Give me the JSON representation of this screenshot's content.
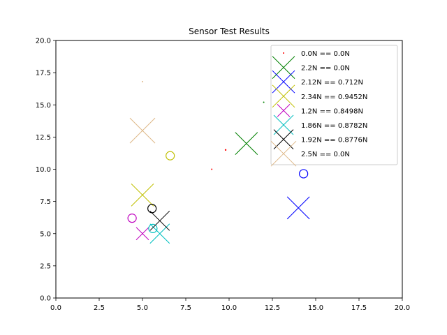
{
  "chart_data": {
    "type": "scatter",
    "title": "Sensor Test Results",
    "xlabel": "",
    "ylabel": "",
    "xlim": [
      0,
      20
    ],
    "ylim": [
      0,
      20
    ],
    "xticks": [
      0,
      2.5,
      5,
      7.5,
      10,
      12.5,
      15,
      17.5,
      20
    ],
    "yticks": [
      0,
      2.5,
      5,
      7.5,
      10,
      12.5,
      15,
      17.5,
      20
    ],
    "xtick_labels": [
      "0.0",
      "2.5",
      "5.0",
      "7.5",
      "10.0",
      "12.5",
      "15.0",
      "17.5",
      "20.0"
    ],
    "ytick_labels": [
      "0.0",
      "2.5",
      "5.0",
      "7.5",
      "10.0",
      "12.5",
      "15.0",
      "17.5",
      "20.0"
    ],
    "grid": false,
    "legend_position": "top-right",
    "series": [
      {
        "name": "0.0N == 0.0N",
        "color": "#ff0000",
        "marker": "dot",
        "size": 1,
        "points": [
          {
            "x": 9.0,
            "y": 10.0
          },
          {
            "x": 9.8,
            "y": 11.5
          }
        ]
      },
      {
        "name": "2.2N == 0.0N",
        "color": "#008000",
        "marker": "x",
        "size": 16,
        "points": [
          {
            "x": 11.0,
            "y": 12.0
          },
          {
            "x": 12.0,
            "y": 15.2
          }
        ]
      },
      {
        "name": "2.12N == 0.712N",
        "color": "#0000ff",
        "marker": "x",
        "size": 16,
        "points": [
          {
            "x": 14.0,
            "y": 7.0
          },
          {
            "x": 14.3,
            "y": 9.65
          }
        ]
      },
      {
        "name": "2.34N == 0.9452N",
        "color": "#bfbf00",
        "marker": "x",
        "size": 16,
        "points": [
          {
            "x": 5.0,
            "y": 8.0
          },
          {
            "x": 6.6,
            "y": 11.05
          }
        ]
      },
      {
        "name": "1.2N == 0.8498N",
        "color": "#bf00bf",
        "marker": "x",
        "size": 9,
        "points": [
          {
            "x": 5.0,
            "y": 5.0
          },
          {
            "x": 4.4,
            "y": 6.2
          }
        ]
      },
      {
        "name": "1.86N == 0.8782N",
        "color": "#00bfbf",
        "marker": "x",
        "size": 14,
        "points": [
          {
            "x": 6.0,
            "y": 5.0
          },
          {
            "x": 5.6,
            "y": 5.4
          }
        ]
      },
      {
        "name": "1.92N == 0.8776N",
        "color": "#000000",
        "marker": "x",
        "size": 14,
        "points": [
          {
            "x": 6.0,
            "y": 6.0
          },
          {
            "x": 5.55,
            "y": 6.95
          }
        ]
      },
      {
        "name": "2.5N == 0.0N",
        "color": "#deb887",
        "marker": "x",
        "size": 18,
        "points": [
          {
            "x": 5.0,
            "y": 13.0
          },
          {
            "x": 5.0,
            "y": 16.8
          }
        ]
      }
    ]
  }
}
